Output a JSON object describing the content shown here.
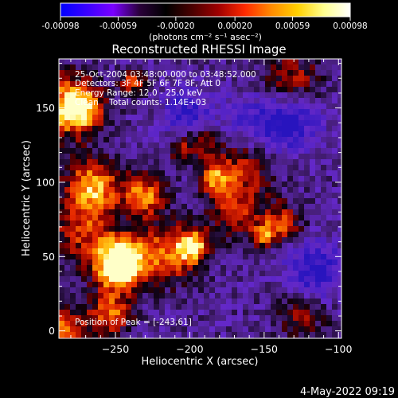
{
  "colorbar": {
    "tick_labels": [
      "-0.00098",
      "-0.00059",
      "-0.00020",
      "0.00020",
      "0.00059",
      "0.00098"
    ],
    "tick_values": [
      -0.00098,
      -0.00059,
      -0.0002,
      0.0002,
      0.00059,
      0.00098
    ],
    "range": [
      -0.00098,
      0.00098
    ],
    "colors": [
      "#0000ff",
      "#3a00ff",
      "#7a00ff",
      "#2a003a",
      "#000000",
      "#4a0000",
      "#a00000",
      "#ff2a00",
      "#ff8a00",
      "#ffd000",
      "#ffff90",
      "#ffffff"
    ]
  },
  "chart_data": {
    "type": "heatmap",
    "title": "Reconstructed RHESSI Image",
    "xlabel": "Heliocentric X (arcsec)",
    "ylabel": "Heliocentric Y (arcsec)",
    "unit_label": "(photons cm⁻² s⁻¹ asec⁻²)",
    "xlim": [
      -288,
      -98
    ],
    "ylim": [
      -5,
      183
    ],
    "x_ticks": [
      -250,
      -200,
      -150,
      -100
    ],
    "y_ticks": [
      0,
      50,
      100,
      150
    ],
    "x_tick_labels": [
      "−250",
      "−200",
      "−150",
      "−100"
    ],
    "y_tick_labels": [
      "0",
      "50",
      "100",
      "150"
    ],
    "info_lines": [
      "25-Oct-2004 03:48:00.000 to 03:48:52.000",
      "Detectors: 3F 4F 5F 6F 7F 8F, Att 0",
      "Energy Range: 12.0 - 25.0 keV",
      "Clean    Total counts: 1.14E+03"
    ],
    "peak_label": "Position of Peak = [-243,61]",
    "peak": [
      -243,
      61
    ]
  },
  "footer": {
    "timestamp": "4-May-2022 09:19"
  }
}
